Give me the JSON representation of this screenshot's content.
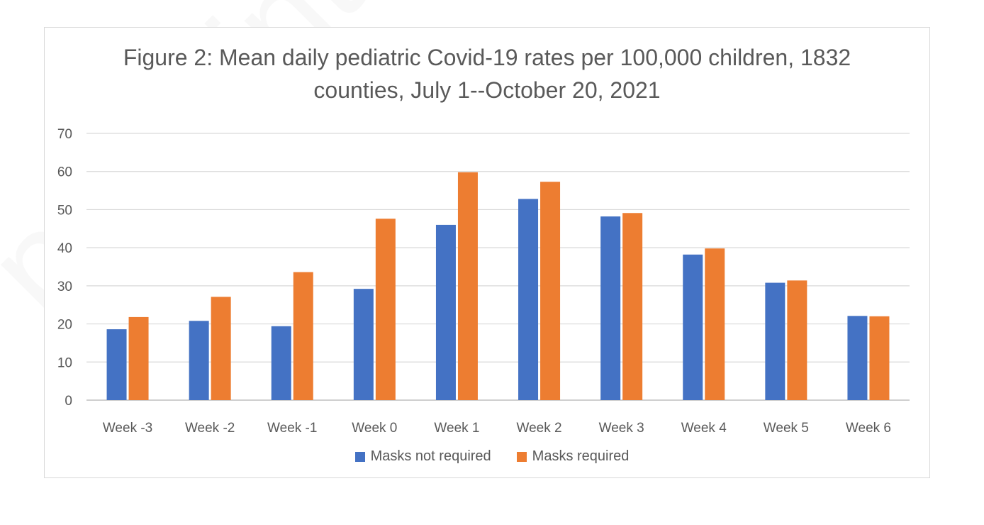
{
  "watermark": "preprint not peer reviewed",
  "chart_data": {
    "type": "bar",
    "title_lines": [
      "Figure 2: Mean daily pediatric Covid-19 rates per 100,000 children, 1832",
      "counties, July 1--October 20, 2021"
    ],
    "xlabel": "",
    "ylabel": "",
    "ylim": [
      0,
      70
    ],
    "yticks": [
      0,
      10,
      20,
      30,
      40,
      50,
      60,
      70
    ],
    "grid": true,
    "legend_position": "bottom",
    "categories": [
      "Week -3",
      "Week -2",
      "Week -1",
      "Week 0",
      "Week 1",
      "Week 2",
      "Week 3",
      "Week 4",
      "Week 5",
      "Week 6"
    ],
    "series": [
      {
        "name": "Masks not required",
        "color": "#4472c4",
        "values": [
          18.6,
          20.8,
          19.4,
          29.2,
          46.0,
          52.8,
          48.2,
          38.2,
          30.8,
          22.1
        ]
      },
      {
        "name": "Masks required",
        "color": "#ed7d31",
        "values": [
          21.8,
          27.1,
          33.6,
          47.6,
          59.8,
          57.3,
          49.1,
          39.8,
          31.4,
          22.0
        ]
      }
    ]
  }
}
